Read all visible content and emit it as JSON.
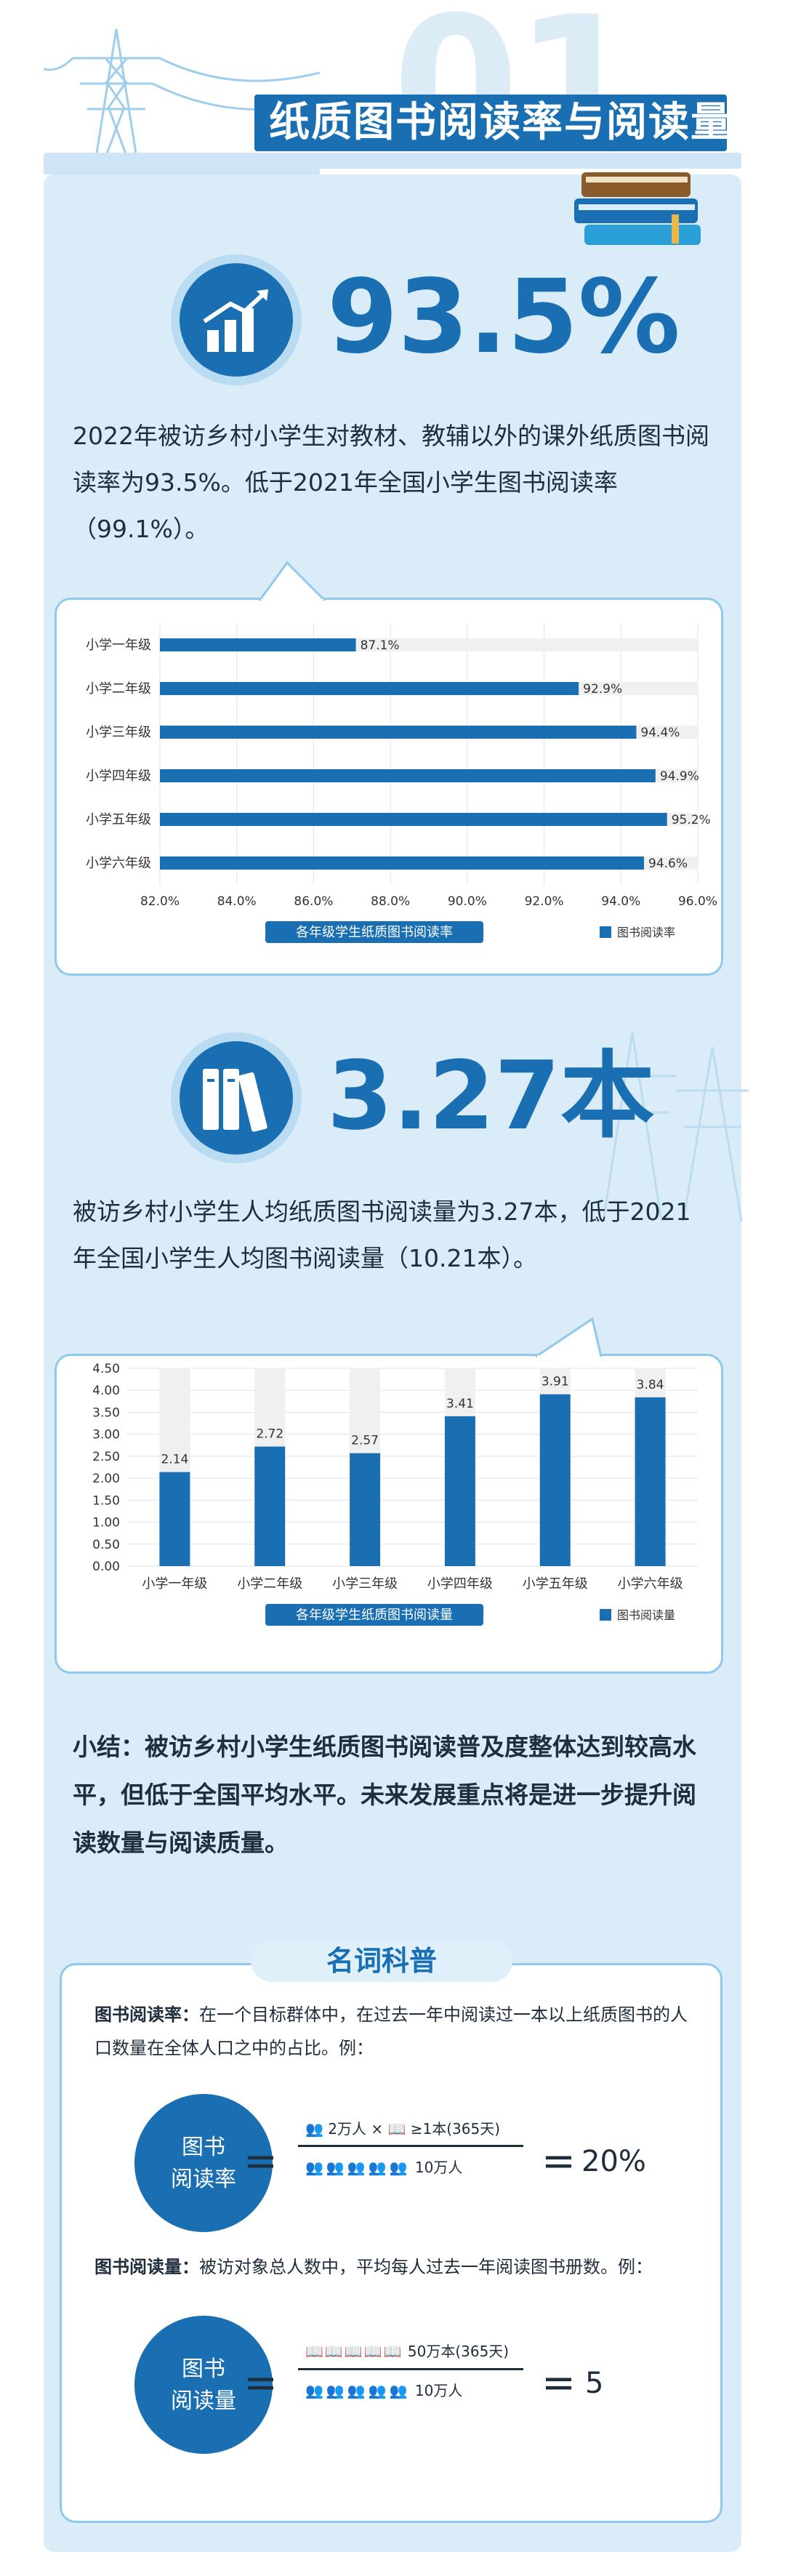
{
  "header": {
    "section_number": "01",
    "title": "纸质图书阅读率与阅读量"
  },
  "section1": {
    "headline": "93.5%",
    "paragraph": "2022年被访乡村小学生对教材、教辅以外的课外纸质图书阅读率为93.5%。低于2021年全国小学生图书阅读率（99.1%）。"
  },
  "section2": {
    "headline": "3.27本",
    "paragraph": "被访乡村小学生人均纸质图书阅读量为3.27本，低于2021年全国小学生人均图书阅读量（10.21本）。"
  },
  "summary": {
    "text": "小结：被访乡村小学生纸质图书阅读普及度整体达到较高水平，但低于全国平均水平。未来发展重点将是进一步提升阅读数量与阅读质量。"
  },
  "glossary": {
    "title": "名词科普",
    "rate_term": "图书阅读率：",
    "rate_def": "在一个目标群体中，在过去一年中阅读过一本以上纸质图书的人口数量在全体人口之中的占比。例：",
    "rate_circle_line1": "图书",
    "rate_circle_line2": "阅读率",
    "rate_numerator_a": "2万人",
    "rate_numerator_times": "×",
    "rate_numerator_b": "≥1本(365天)",
    "rate_denominator": "10万人",
    "rate_equals": "=",
    "rate_result": "20%",
    "volume_term": "图书阅读量：",
    "volume_def": "被访对象总人数中，平均每人过去一年阅读图书册数。例：",
    "volume_circle_line1": "图书",
    "volume_circle_line2": "阅读量",
    "volume_numerator": "50万本(365天)",
    "volume_denominator": "10万人",
    "volume_equals": "=",
    "volume_result": "5"
  },
  "chart_data": [
    {
      "type": "bar",
      "orientation": "horizontal",
      "title": "各年级学生纸质图书阅读率",
      "categories": [
        "小学一年级",
        "小学二年级",
        "小学三年级",
        "小学四年级",
        "小学五年级",
        "小学六年级"
      ],
      "series": [
        {
          "name": "图书阅读率",
          "values": [
            87.1,
            92.9,
            94.4,
            94.9,
            95.2,
            94.6
          ]
        }
      ],
      "value_labels": [
        "87.1%",
        "92.9%",
        "94.4%",
        "94.9%",
        "95.2%",
        "94.6%"
      ],
      "xlim": [
        82,
        96
      ],
      "x_ticks": [
        "82.0%",
        "84.0%",
        "86.0%",
        "88.0%",
        "90.0%",
        "92.0%",
        "94.0%",
        "96.0%"
      ],
      "legend": "bottom-right",
      "grid": true,
      "colors": {
        "bar": "#1a6fb3",
        "track": "#f0f0f0"
      }
    },
    {
      "type": "bar",
      "orientation": "vertical",
      "title": "各年级学生纸质图书阅读量",
      "categories": [
        "小学一年级",
        "小学二年级",
        "小学三年级",
        "小学四年级",
        "小学五年级",
        "小学六年级"
      ],
      "series": [
        {
          "name": "图书阅读量",
          "values": [
            2.14,
            2.72,
            2.57,
            3.41,
            3.91,
            3.84
          ]
        }
      ],
      "value_labels": [
        "2.14",
        "2.72",
        "2.57",
        "3.41",
        "3.91",
        "3.84"
      ],
      "ylim": [
        0,
        4.5
      ],
      "y_ticks": [
        "0.00",
        "0.50",
        "1.00",
        "1.50",
        "2.00",
        "2.50",
        "3.00",
        "3.50",
        "4.00",
        "4.50"
      ],
      "legend": "bottom-right",
      "grid": true,
      "colors": {
        "bar": "#1a6fb3",
        "track": "#f0f0f0"
      }
    }
  ]
}
